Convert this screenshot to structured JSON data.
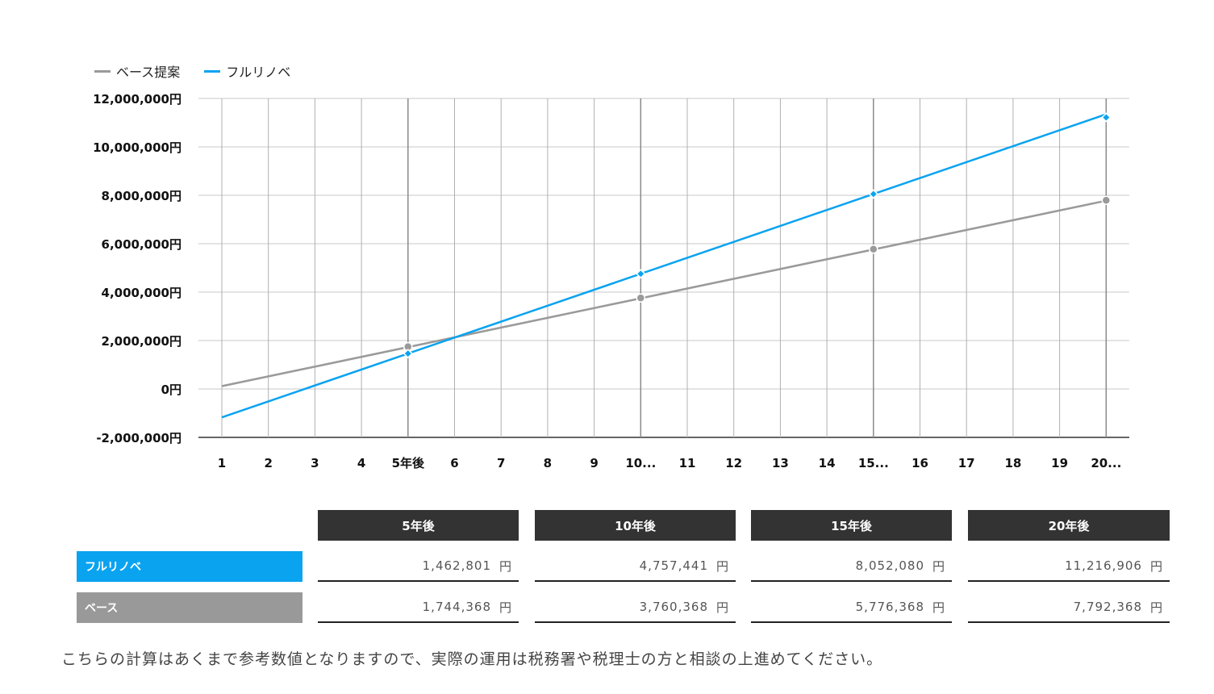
{
  "chart_data": {
    "type": "line",
    "categories": [
      "1",
      "2",
      "3",
      "4",
      "5年後",
      "6",
      "7",
      "8",
      "9",
      "10...",
      "11",
      "12",
      "13",
      "14",
      "15...",
      "16",
      "17",
      "18",
      "19",
      "20..."
    ],
    "x_values": [
      1,
      2,
      3,
      4,
      5,
      6,
      7,
      8,
      9,
      10,
      11,
      12,
      13,
      14,
      15,
      16,
      17,
      18,
      19,
      20
    ],
    "y_ticks": [
      "12,000,000円",
      "10,000,000円",
      "8,000,000円",
      "6,000,000円",
      "4,000,000円",
      "2,000,000円",
      "0円",
      "-2,000,000円"
    ],
    "ylim": [
      -2000000,
      12000000
    ],
    "y_step": 2000000,
    "grid": true,
    "legend_position": "top-left",
    "series": [
      {
        "name": "ベース提案",
        "color": "#9a9a9a",
        "marker": "circle",
        "start": 116368,
        "slope": 403200,
        "marked_points": [
          {
            "x": 5,
            "y": 1744368
          },
          {
            "x": 10,
            "y": 3760368
          },
          {
            "x": 15,
            "y": 5776368
          },
          {
            "x": 20,
            "y": 7792368
          }
        ]
      },
      {
        "name": "フルリノベ",
        "color": "#0aa3f0",
        "marker": "diamond",
        "start": -1173127,
        "slope": 658982,
        "marked_points": [
          {
            "x": 5,
            "y": 1462801
          },
          {
            "x": 10,
            "y": 4757441
          },
          {
            "x": 15,
            "y": 8052080
          },
          {
            "x": 20,
            "y": 11216906
          }
        ]
      }
    ]
  },
  "table": {
    "headers": [
      "5年後",
      "10年後",
      "15年後",
      "20年後"
    ],
    "rows": [
      {
        "label": "フルリノベ",
        "color": "#0aa3f0",
        "values": [
          "1,462,801",
          "4,757,441",
          "8,052,080",
          "11,216,906"
        ]
      },
      {
        "label": "ベース",
        "color": "#999999",
        "values": [
          "1,744,368",
          "3,760,368",
          "5,776,368",
          "7,792,368"
        ]
      }
    ],
    "unit": "円"
  },
  "note": "こちらの計算はあくまで参考数値となりますので、実際の運用は税務署や税理士の方と相談の上進めてください。"
}
